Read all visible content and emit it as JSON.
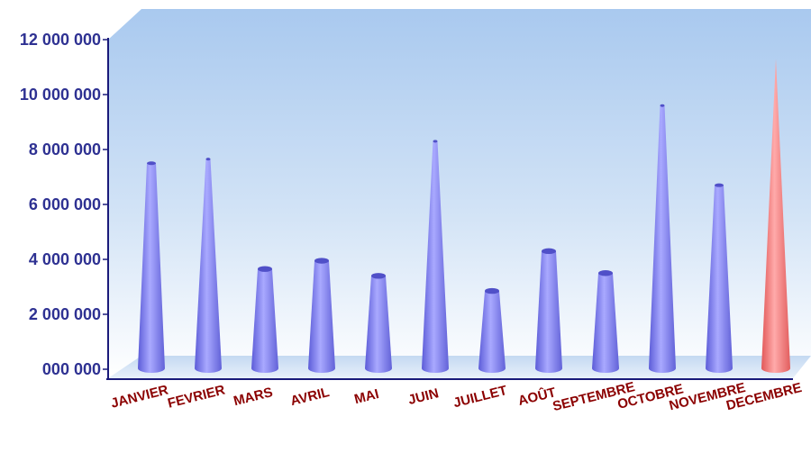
{
  "chart_data": {
    "type": "bar",
    "title": "",
    "xlabel": "",
    "ylabel": "",
    "ylim": [
      0,
      12000000
    ],
    "y_ticks": [
      {
        "value": 0,
        "label": "000 000"
      },
      {
        "value": 2000000,
        "label": "2 000 000"
      },
      {
        "value": 4000000,
        "label": "4 000 000"
      },
      {
        "value": 6000000,
        "label": "6 000 000"
      },
      {
        "value": 8000000,
        "label": "8 000 000"
      },
      {
        "value": 10000000,
        "label": "10 000 000"
      },
      {
        "value": 12000000,
        "label": "12 000 000"
      }
    ],
    "categories": [
      "JANVIER",
      "FEVRIER",
      "MARS",
      "AVRIL",
      "MAI",
      "JUIN",
      "JUILLET",
      "AOÛT",
      "SEPTEMBRE",
      "OCTOBRE",
      "NOVEMBRE",
      "DECEMBRE"
    ],
    "values": [
      7500000,
      7650000,
      3650000,
      3950000,
      3400000,
      8300000,
      2850000,
      4300000,
      3500000,
      9600000,
      6700000,
      11300000
    ],
    "grid": false,
    "legend": "none",
    "colors": {
      "bar": "#7b7bea",
      "bar_highlight": "#ee6e6e",
      "y_axis_text": "#2e3192",
      "x_axis_text": "#8b0000",
      "background_top": "#a9c9ef",
      "background_bottom": "#ffffff",
      "axis": "#1a1a7a"
    },
    "highlight_category": "DECEMBRE"
  }
}
